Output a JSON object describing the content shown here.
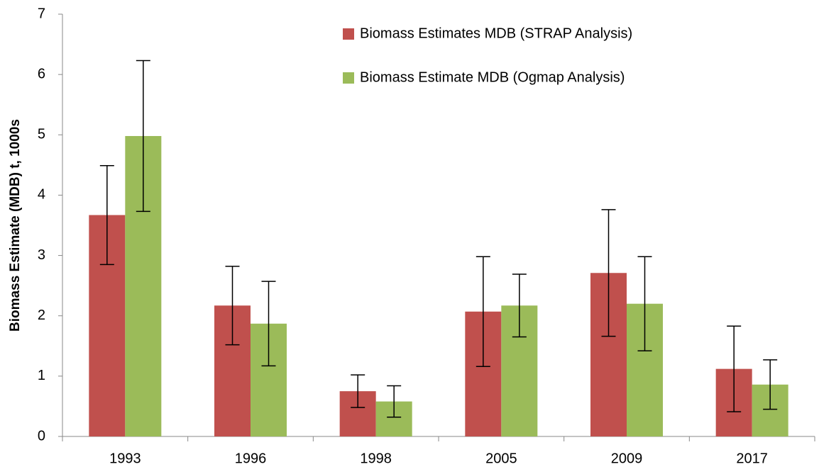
{
  "chart_data": {
    "type": "bar",
    "ylabel": "Biomass Estimate (MDB) t, 1000s",
    "categories": [
      "1993",
      "1996",
      "1998",
      "2005",
      "2009",
      "2017"
    ],
    "series": [
      {
        "name": "Biomass Estimates MDB (STRAP Analysis)",
        "color": "#c0504d",
        "values": [
          3.67,
          2.17,
          0.75,
          2.07,
          2.71,
          1.12
        ],
        "errors": [
          0.82,
          0.65,
          0.27,
          0.91,
          1.05,
          0.71
        ]
      },
      {
        "name": "Biomass Estimate MDB (Ogmap Analysis)",
        "color": "#9bbb59",
        "values": [
          4.98,
          1.87,
          0.58,
          2.17,
          2.2,
          0.86
        ],
        "errors": [
          1.25,
          0.7,
          0.26,
          0.52,
          0.78,
          0.41
        ]
      }
    ],
    "ylim": [
      0,
      7
    ],
    "yticks": [
      0,
      1,
      2,
      3,
      4,
      5,
      6,
      7
    ],
    "grid": false,
    "legend": "top-right"
  }
}
